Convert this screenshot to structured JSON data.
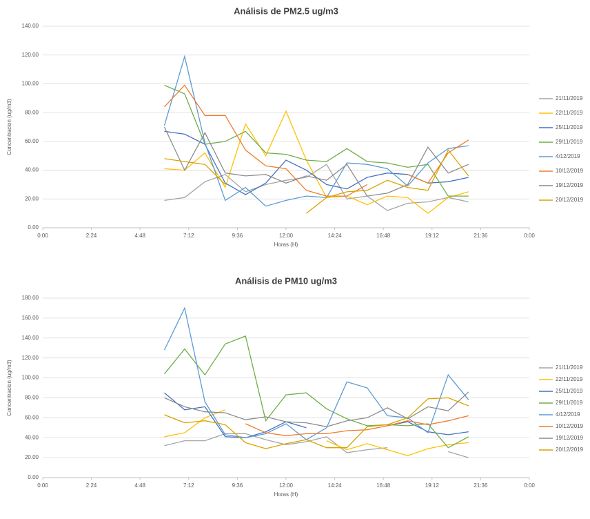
{
  "chart_data": [
    {
      "type": "line",
      "title": "Análisis de PM2.5 ug/m3",
      "x_label": "Horas (H)",
      "y_label": "Concentracion (ug/m3)",
      "x": [
        6,
        7,
        8,
        9,
        10,
        11,
        12,
        13,
        14,
        15,
        16,
        17,
        18,
        19,
        20,
        21
      ],
      "xlim": [
        0,
        24
      ],
      "xticks": [
        {
          "value": 0,
          "label": "0:00"
        },
        {
          "value": 2.4,
          "label": "2:24"
        },
        {
          "value": 4.8,
          "label": "4:48"
        },
        {
          "value": 7.2,
          "label": "7:12"
        },
        {
          "value": 9.6,
          "label": "9:36"
        },
        {
          "value": 12,
          "label": "12:00"
        },
        {
          "value": 14.4,
          "label": "14:24"
        },
        {
          "value": 16.8,
          "label": "16:48"
        },
        {
          "value": 19.2,
          "label": "19:12"
        },
        {
          "value": 21.6,
          "label": "21:36"
        },
        {
          "value": 24,
          "label": "0:00"
        }
      ],
      "ylim": [
        0,
        140
      ],
      "yticks": [
        {
          "value": 0,
          "label": "0.00"
        },
        {
          "value": 20,
          "label": "20.00"
        },
        {
          "value": 40,
          "label": "40.00"
        },
        {
          "value": 60,
          "label": "60.00"
        },
        {
          "value": 80,
          "label": "80.00"
        },
        {
          "value": 100,
          "label": "100.00"
        },
        {
          "value": 120,
          "label": "120.00"
        },
        {
          "value": 140,
          "label": "140.00"
        }
      ],
      "grid": true,
      "legend": "right",
      "series": [
        {
          "name": "21/11/2019",
          "color": "#a5a5a5",
          "values": [
            19,
            21,
            32,
            37,
            25,
            30,
            33,
            35,
            44,
            20,
            22,
            12,
            17,
            18,
            21,
            18
          ]
        },
        {
          "name": "22/11/2019",
          "color": "#ffc000",
          "values": [
            41,
            40,
            52,
            28,
            72,
            50,
            81,
            47,
            21,
            22,
            16,
            22,
            21,
            10,
            21,
            25
          ]
        },
        {
          "name": "25/11/2019",
          "color": "#4472c4",
          "values": [
            67,
            65,
            58,
            31,
            23,
            31,
            47,
            40,
            30,
            27,
            35,
            38,
            37,
            31,
            32,
            35
          ]
        },
        {
          "name": "29/11/2019",
          "color": "#70ad47",
          "values": [
            99,
            93,
            58,
            60,
            67,
            52,
            51,
            47,
            46,
            55,
            46,
            45,
            42,
            44,
            22,
            22
          ]
        },
        {
          "name": "4/12/2019",
          "color": "#5b9bd5",
          "values": [
            71,
            119,
            59,
            19,
            28,
            15,
            19,
            22,
            21,
            45,
            44,
            41,
            29,
            45,
            55,
            57
          ]
        },
        {
          "name": "10/12/2019",
          "color": "#ed7d31",
          "values": [
            84,
            99,
            78,
            78,
            54,
            43,
            41,
            26,
            22,
            22,
            30,
            null,
            37,
            31,
            52,
            61
          ]
        },
        {
          "name": "19/12/2019",
          "color": "#8c8c8c",
          "values": [
            70,
            40,
            66,
            38,
            36,
            37,
            31,
            36,
            33,
            44,
            22,
            24,
            30,
            56,
            38,
            44
          ]
        },
        {
          "name": "20/12/2019",
          "color": "#d9a300",
          "values": [
            48,
            46,
            44,
            30,
            null,
            null,
            null,
            10,
            21,
            25,
            26,
            33,
            28,
            26,
            54,
            36
          ]
        }
      ]
    },
    {
      "type": "line",
      "title": "Análisis de PM10 ug/m3",
      "x_label": "Horas (H)",
      "y_label": "Concentracion (ug/m3)",
      "x": [
        6,
        7,
        8,
        9,
        10,
        11,
        12,
        13,
        14,
        15,
        16,
        17,
        18,
        19,
        20,
        21
      ],
      "xlim": [
        0,
        24
      ],
      "xticks": [
        {
          "value": 0,
          "label": "0:00"
        },
        {
          "value": 2.4,
          "label": "2:24"
        },
        {
          "value": 4.8,
          "label": "4:48"
        },
        {
          "value": 7.2,
          "label": "7:12"
        },
        {
          "value": 9.6,
          "label": "9:36"
        },
        {
          "value": 12,
          "label": "12:00"
        },
        {
          "value": 14.4,
          "label": "14:24"
        },
        {
          "value": 16.8,
          "label": "16:48"
        },
        {
          "value": 19.2,
          "label": "19:12"
        },
        {
          "value": 21.6,
          "label": "21:36"
        },
        {
          "value": 24,
          "label": "0:00"
        }
      ],
      "ylim": [
        0,
        180
      ],
      "yticks": [
        {
          "value": 0,
          "label": "0.00"
        },
        {
          "value": 20,
          "label": "20.00"
        },
        {
          "value": 40,
          "label": "40.00"
        },
        {
          "value": 60,
          "label": "60.00"
        },
        {
          "value": 80,
          "label": "80.00"
        },
        {
          "value": 100,
          "label": "100.00"
        },
        {
          "value": 120,
          "label": "120.00"
        },
        {
          "value": 140,
          "label": "140.00"
        },
        {
          "value": 160,
          "label": "160.00"
        },
        {
          "value": 180,
          "label": "180.00"
        }
      ],
      "grid": true,
      "legend": "right",
      "series": [
        {
          "name": "21/11/2019",
          "color": "#a5a5a5",
          "values": [
            32,
            37,
            37,
            44,
            44,
            38,
            33,
            36,
            41,
            25,
            28,
            30,
            null,
            null,
            26,
            20
          ]
        },
        {
          "name": "22/11/2019",
          "color": "#ffc000",
          "values": [
            41,
            45,
            60,
            68,
            null,
            null,
            null,
            null,
            37,
            28,
            34,
            28,
            22,
            29,
            33,
            35
          ]
        },
        {
          "name": "25/11/2019",
          "color": "#4472c4",
          "values": [
            85,
            68,
            71,
            41,
            40,
            46,
            56,
            50,
            null,
            null,
            null,
            52,
            56,
            46,
            43,
            46
          ]
        },
        {
          "name": "29/11/2019",
          "color": "#70ad47",
          "values": [
            104,
            129,
            103,
            134,
            142,
            57,
            83,
            85,
            69,
            59,
            52,
            53,
            52,
            54,
            30,
            41
          ]
        },
        {
          "name": "4/12/2019",
          "color": "#5b9bd5",
          "values": [
            128,
            170,
            76,
            43,
            40,
            44,
            54,
            38,
            50,
            96,
            90,
            62,
            60,
            45,
            103,
            78
          ]
        },
        {
          "name": "10/12/2019",
          "color": "#ed7d31",
          "values": [
            null,
            null,
            89,
            null,
            54,
            45,
            42,
            44,
            44,
            47,
            48,
            52,
            57,
            53,
            57,
            62
          ]
        },
        {
          "name": "19/12/2019",
          "color": "#8c8c8c",
          "values": [
            80,
            71,
            66,
            65,
            58,
            61,
            56,
            55,
            51,
            57,
            60,
            70,
            59,
            71,
            67,
            86
          ]
        },
        {
          "name": "20/12/2019",
          "color": "#d9a300",
          "values": [
            63,
            55,
            57,
            53,
            35,
            29,
            34,
            38,
            30,
            30,
            51,
            53,
            60,
            79,
            80,
            72
          ]
        }
      ]
    }
  ]
}
